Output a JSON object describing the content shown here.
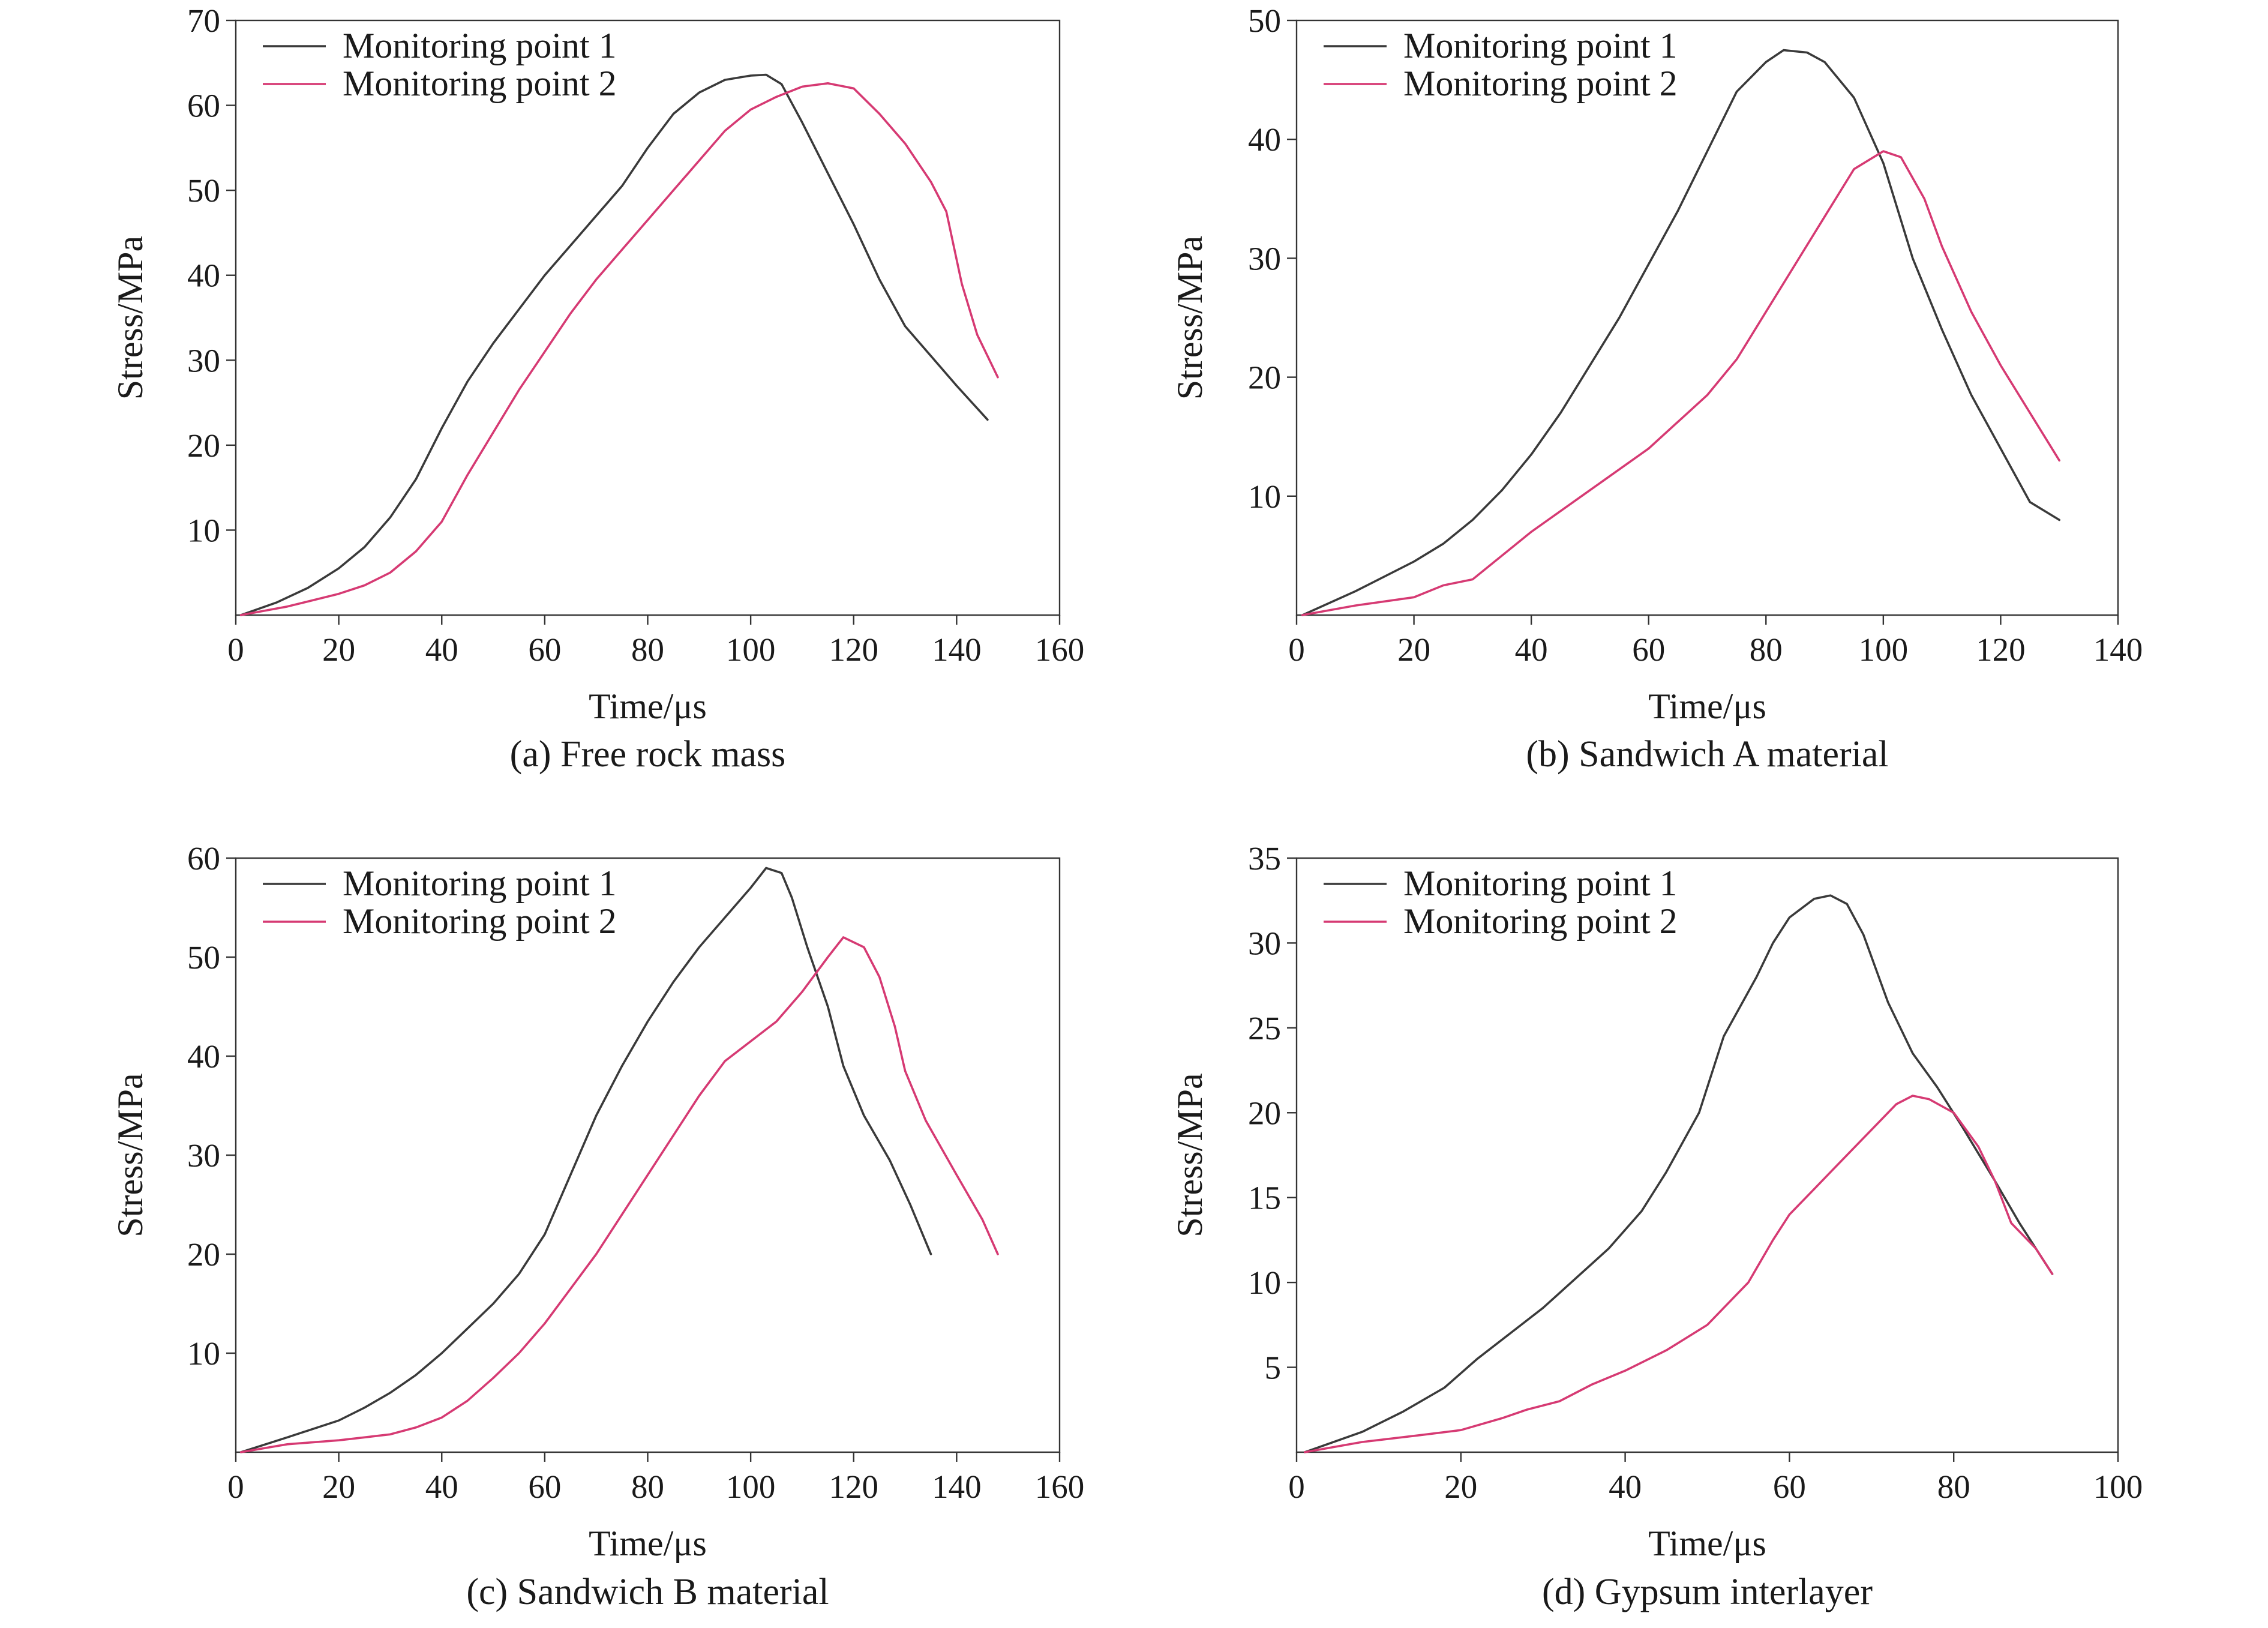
{
  "chart_data": [
    {
      "type": "line",
      "caption": "(a) Free rock mass",
      "xlabel": "Time/μs",
      "ylabel": "Stress/MPa",
      "xlim": [
        0,
        160
      ],
      "ylim": [
        0,
        70
      ],
      "x_ticks": [
        0,
        20,
        40,
        60,
        80,
        100,
        120,
        140,
        160
      ],
      "y_ticks": [
        10,
        20,
        30,
        40,
        50,
        60,
        70
      ],
      "legend": "top-left",
      "series": [
        {
          "name": "Monitoring point 1",
          "color": "#3a3a3a",
          "points": [
            [
              1,
              0
            ],
            [
              8,
              1.5
            ],
            [
              14,
              3.2
            ],
            [
              20,
              5.5
            ],
            [
              25,
              8
            ],
            [
              30,
              11.5
            ],
            [
              35,
              16
            ],
            [
              40,
              22
            ],
            [
              45,
              27.5
            ],
            [
              50,
              32
            ],
            [
              55,
              36
            ],
            [
              60,
              40
            ],
            [
              65,
              43.5
            ],
            [
              70,
              47
            ],
            [
              75,
              50.5
            ],
            [
              80,
              55
            ],
            [
              85,
              59
            ],
            [
              90,
              61.5
            ],
            [
              95,
              63
            ],
            [
              100,
              63.5
            ],
            [
              103,
              63.6
            ],
            [
              106,
              62.5
            ],
            [
              110,
              58
            ],
            [
              115,
              52
            ],
            [
              120,
              46
            ],
            [
              125,
              39.5
            ],
            [
              130,
              34
            ],
            [
              135,
              30.5
            ],
            [
              140,
              27
            ],
            [
              143,
              25
            ],
            [
              146,
              23
            ]
          ]
        },
        {
          "name": "Monitoring point 2",
          "color": "#d63a73",
          "points": [
            [
              1,
              0
            ],
            [
              10,
              1
            ],
            [
              20,
              2.5
            ],
            [
              25,
              3.5
            ],
            [
              30,
              5
            ],
            [
              35,
              7.5
            ],
            [
              40,
              11
            ],
            [
              45,
              16.5
            ],
            [
              50,
              21.5
            ],
            [
              55,
              26.5
            ],
            [
              60,
              31
            ],
            [
              65,
              35.5
            ],
            [
              70,
              39.5
            ],
            [
              75,
              43
            ],
            [
              80,
              46.5
            ],
            [
              85,
              50
            ],
            [
              90,
              53.5
            ],
            [
              95,
              57
            ],
            [
              100,
              59.5
            ],
            [
              105,
              61
            ],
            [
              110,
              62.2
            ],
            [
              115,
              62.6
            ],
            [
              120,
              62
            ],
            [
              125,
              59
            ],
            [
              130,
              55.5
            ],
            [
              135,
              51
            ],
            [
              138,
              47.5
            ],
            [
              141,
              39
            ],
            [
              144,
              33
            ],
            [
              148,
              28
            ]
          ]
        }
      ]
    },
    {
      "type": "line",
      "caption": "(b) Sandwich A material",
      "xlabel": "Time/μs",
      "ylabel": "Stress/MPa",
      "xlim": [
        0,
        140
      ],
      "ylim": [
        0,
        50
      ],
      "x_ticks": [
        0,
        20,
        40,
        60,
        80,
        100,
        120,
        140
      ],
      "y_ticks": [
        10,
        20,
        30,
        40,
        50
      ],
      "legend": "top-left",
      "series": [
        {
          "name": "Monitoring point 1",
          "color": "#3a3a3a",
          "points": [
            [
              1,
              0
            ],
            [
              10,
              2
            ],
            [
              20,
              4.5
            ],
            [
              25,
              6
            ],
            [
              30,
              8
            ],
            [
              35,
              10.5
            ],
            [
              40,
              13.5
            ],
            [
              45,
              17
            ],
            [
              50,
              21
            ],
            [
              55,
              25
            ],
            [
              60,
              29.5
            ],
            [
              65,
              34
            ],
            [
              70,
              39
            ],
            [
              75,
              44
            ],
            [
              80,
              46.5
            ],
            [
              83,
              47.5
            ],
            [
              87,
              47.3
            ],
            [
              90,
              46.5
            ],
            [
              95,
              43.5
            ],
            [
              100,
              38
            ],
            [
              105,
              30
            ],
            [
              110,
              24
            ],
            [
              115,
              18.5
            ],
            [
              120,
              14
            ],
            [
              125,
              9.5
            ],
            [
              130,
              8
            ]
          ]
        },
        {
          "name": "Monitoring point 2",
          "color": "#d63a73",
          "points": [
            [
              1,
              0
            ],
            [
              10,
              0.8
            ],
            [
              20,
              1.5
            ],
            [
              25,
              2.5
            ],
            [
              30,
              3
            ],
            [
              35,
              5
            ],
            [
              40,
              7
            ],
            [
              50,
              10.5
            ],
            [
              60,
              14
            ],
            [
              70,
              18.5
            ],
            [
              75,
              21.5
            ],
            [
              80,
              25.5
            ],
            [
              85,
              29.5
            ],
            [
              90,
              33.5
            ],
            [
              95,
              37.5
            ],
            [
              100,
              39
            ],
            [
              103,
              38.5
            ],
            [
              107,
              35
            ],
            [
              110,
              31
            ],
            [
              115,
              25.5
            ],
            [
              120,
              21
            ],
            [
              125,
              17
            ],
            [
              130,
              13
            ]
          ]
        }
      ]
    },
    {
      "type": "line",
      "caption": "(c) Sandwich B material",
      "xlabel": "Time/μs",
      "ylabel": "Stress/MPa",
      "xlim": [
        0,
        160
      ],
      "ylim": [
        0,
        60
      ],
      "x_ticks": [
        0,
        20,
        40,
        60,
        80,
        100,
        120,
        140,
        160
      ],
      "y_ticks": [
        10,
        20,
        30,
        40,
        50,
        60
      ],
      "legend": "top-left",
      "series": [
        {
          "name": "Monitoring point 1",
          "color": "#3a3a3a",
          "points": [
            [
              1,
              0
            ],
            [
              10,
              1.5
            ],
            [
              20,
              3.2
            ],
            [
              25,
              4.5
            ],
            [
              30,
              6
            ],
            [
              35,
              7.8
            ],
            [
              40,
              10
            ],
            [
              45,
              12.5
            ],
            [
              50,
              15
            ],
            [
              55,
              18
            ],
            [
              60,
              22
            ],
            [
              65,
              28
            ],
            [
              70,
              34
            ],
            [
              75,
              39
            ],
            [
              80,
              43.5
            ],
            [
              85,
              47.5
            ],
            [
              90,
              51
            ],
            [
              95,
              54
            ],
            [
              100,
              57
            ],
            [
              103,
              59
            ],
            [
              106,
              58.5
            ],
            [
              108,
              56
            ],
            [
              111,
              51
            ],
            [
              115,
              45
            ],
            [
              118,
              39
            ],
            [
              122,
              34
            ],
            [
              127,
              29.5
            ],
            [
              131,
              25
            ],
            [
              135,
              20
            ]
          ]
        },
        {
          "name": "Monitoring point 2",
          "color": "#d63a73",
          "points": [
            [
              1,
              0
            ],
            [
              10,
              0.8
            ],
            [
              20,
              1.2
            ],
            [
              25,
              1.5
            ],
            [
              30,
              1.8
            ],
            [
              35,
              2.5
            ],
            [
              40,
              3.5
            ],
            [
              45,
              5.2
            ],
            [
              50,
              7.5
            ],
            [
              55,
              10
            ],
            [
              60,
              13
            ],
            [
              65,
              16.5
            ],
            [
              70,
              20
            ],
            [
              75,
              24
            ],
            [
              80,
              28
            ],
            [
              85,
              32
            ],
            [
              90,
              36
            ],
            [
              95,
              39.5
            ],
            [
              100,
              41.5
            ],
            [
              105,
              43.5
            ],
            [
              110,
              46.5
            ],
            [
              115,
              50
            ],
            [
              118,
              52
            ],
            [
              122,
              51
            ],
            [
              125,
              48
            ],
            [
              128,
              43
            ],
            [
              130,
              38.5
            ],
            [
              134,
              33.5
            ],
            [
              140,
              28
            ],
            [
              145,
              23.5
            ],
            [
              148,
              20
            ]
          ]
        }
      ]
    },
    {
      "type": "line",
      "caption": "(d) Gypsum interlayer",
      "xlabel": "Time/μs",
      "ylabel": "Stress/MPa",
      "xlim": [
        0,
        100
      ],
      "ylim": [
        0,
        35
      ],
      "x_ticks": [
        0,
        20,
        40,
        60,
        80,
        100
      ],
      "y_ticks": [
        5,
        10,
        15,
        20,
        25,
        30,
        35
      ],
      "legend": "top-left",
      "series": [
        {
          "name": "Monitoring point 1",
          "color": "#3a3a3a",
          "points": [
            [
              1,
              0
            ],
            [
              8,
              1.2
            ],
            [
              13,
              2.4
            ],
            [
              18,
              3.8
            ],
            [
              22,
              5.5
            ],
            [
              30,
              8.5
            ],
            [
              38,
              12
            ],
            [
              42,
              14.2
            ],
            [
              45,
              16.5
            ],
            [
              49,
              20
            ],
            [
              52,
              24.5
            ],
            [
              56,
              28
            ],
            [
              58,
              30
            ],
            [
              60,
              31.5
            ],
            [
              63,
              32.6
            ],
            [
              65,
              32.8
            ],
            [
              67,
              32.3
            ],
            [
              69,
              30.5
            ],
            [
              72,
              26.5
            ],
            [
              75,
              23.5
            ],
            [
              78,
              21.5
            ],
            [
              81,
              19.2
            ],
            [
              85,
              16
            ],
            [
              88,
              13.5
            ],
            [
              92,
              10.5
            ]
          ]
        },
        {
          "name": "Monitoring point 2",
          "color": "#d63a73",
          "points": [
            [
              1,
              0
            ],
            [
              8,
              0.6
            ],
            [
              15,
              1
            ],
            [
              20,
              1.3
            ],
            [
              25,
              2
            ],
            [
              28,
              2.5
            ],
            [
              32,
              3
            ],
            [
              36,
              4
            ],
            [
              40,
              4.8
            ],
            [
              45,
              6
            ],
            [
              50,
              7.5
            ],
            [
              55,
              10
            ],
            [
              58,
              12.5
            ],
            [
              60,
              14
            ],
            [
              63,
              15.5
            ],
            [
              66,
              17
            ],
            [
              70,
              19
            ],
            [
              73,
              20.5
            ],
            [
              75,
              21
            ],
            [
              77,
              20.8
            ],
            [
              80,
              20
            ],
            [
              83,
              18
            ],
            [
              85,
              16
            ],
            [
              87,
              13.5
            ],
            [
              90,
              12
            ],
            [
              92,
              10.5
            ]
          ]
        }
      ]
    }
  ]
}
